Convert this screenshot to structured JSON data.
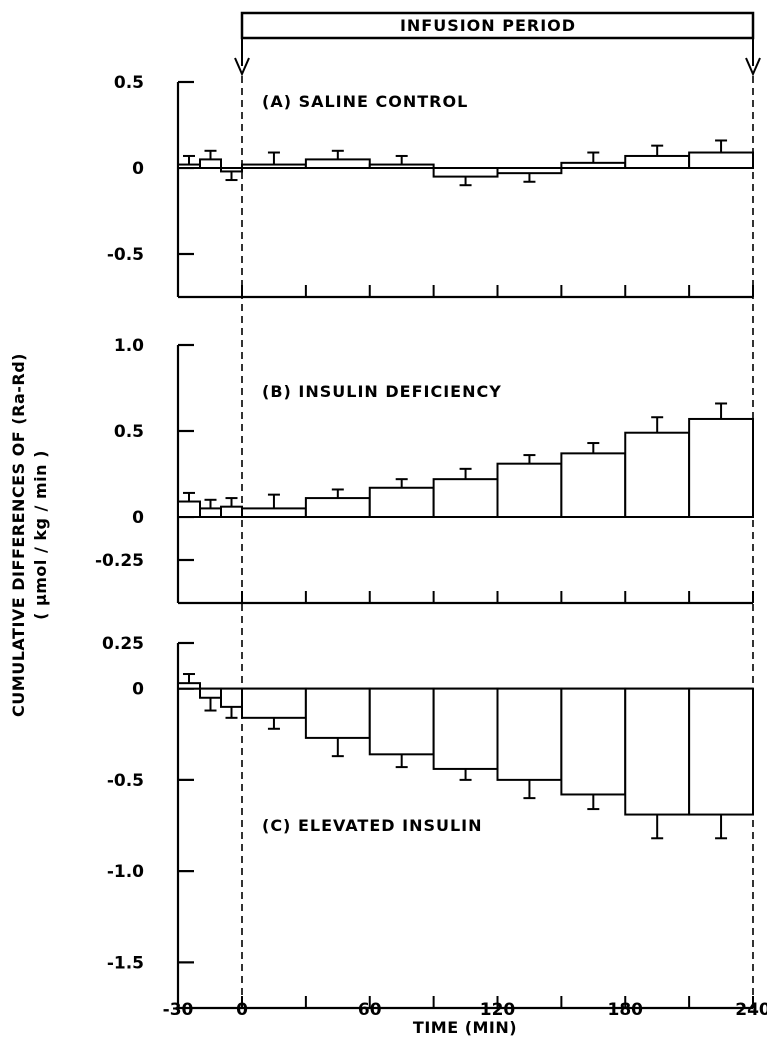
{
  "figure": {
    "infusion_label": "INFUSION PERIOD",
    "ylabel_line1": "CUMULATIVE DIFFERENCES OF (Ra-Rd)",
    "ylabel_line2": "( μmol / kg / min )",
    "xlabel": "TIME (MIN)",
    "x_tick_labels": [
      "-30",
      "0",
      "60",
      "120",
      "180",
      "240"
    ]
  },
  "chart_data": [
    {
      "type": "bar",
      "title": "(A)  SALINE CONTROL",
      "ylim": [
        -0.75,
        0.5
      ],
      "y_tick_labels": [
        "0.5",
        "0",
        "-0.5"
      ],
      "y_ticks": [
        0.5,
        0,
        -0.5
      ],
      "bins": [
        [
          -30,
          -20
        ],
        [
          -20,
          -10
        ],
        [
          -10,
          0
        ],
        [
          0,
          30
        ],
        [
          30,
          60
        ],
        [
          60,
          90
        ],
        [
          90,
          120
        ],
        [
          120,
          150
        ],
        [
          150,
          180
        ],
        [
          180,
          210
        ],
        [
          210,
          240
        ]
      ],
      "values": [
        0.02,
        0.05,
        -0.02,
        0.02,
        0.05,
        0.02,
        -0.05,
        -0.03,
        0.03,
        0.07,
        0.09
      ],
      "errors": [
        0.05,
        0.05,
        0.05,
        0.07,
        0.05,
        0.05,
        0.05,
        0.05,
        0.06,
        0.06,
        0.07
      ]
    },
    {
      "type": "bar",
      "title": "(B)  INSULIN DEFICIENCY",
      "ylim": [
        -0.5,
        1.0
      ],
      "y_tick_labels": [
        "1.0",
        "0.5",
        "0",
        "-0.25"
      ],
      "y_ticks": [
        1.0,
        0.5,
        0,
        -0.25
      ],
      "bins": [
        [
          -30,
          -20
        ],
        [
          -20,
          -10
        ],
        [
          -10,
          0
        ],
        [
          0,
          30
        ],
        [
          30,
          60
        ],
        [
          60,
          90
        ],
        [
          90,
          120
        ],
        [
          120,
          150
        ],
        [
          150,
          180
        ],
        [
          180,
          210
        ],
        [
          210,
          240
        ]
      ],
      "values": [
        0.09,
        0.05,
        0.06,
        0.05,
        0.11,
        0.17,
        0.22,
        0.31,
        0.37,
        0.49,
        0.57
      ],
      "errors": [
        0.05,
        0.05,
        0.05,
        0.08,
        0.05,
        0.05,
        0.06,
        0.05,
        0.06,
        0.09,
        0.09
      ]
    },
    {
      "type": "bar",
      "title": "(C)  ELEVATED INSULIN",
      "ylim": [
        -1.75,
        0.25
      ],
      "y_tick_labels": [
        "0.25",
        "0",
        "-0.5",
        "-1.0",
        "-1.5"
      ],
      "y_ticks": [
        0.25,
        0,
        -0.5,
        -1.0,
        -1.5
      ],
      "bins": [
        [
          -30,
          -20
        ],
        [
          -20,
          -10
        ],
        [
          -10,
          0
        ],
        [
          0,
          30
        ],
        [
          30,
          60
        ],
        [
          60,
          90
        ],
        [
          90,
          120
        ],
        [
          120,
          150
        ],
        [
          150,
          180
        ],
        [
          180,
          210
        ],
        [
          210,
          240
        ]
      ],
      "values": [
        0.03,
        -0.05,
        -0.1,
        -0.16,
        -0.27,
        -0.36,
        -0.44,
        -0.5,
        -0.58,
        -0.69,
        -0.69
      ],
      "errors": [
        0.05,
        0.07,
        0.06,
        0.06,
        0.1,
        0.07,
        0.06,
        0.1,
        0.08,
        0.13,
        0.13
      ]
    }
  ]
}
